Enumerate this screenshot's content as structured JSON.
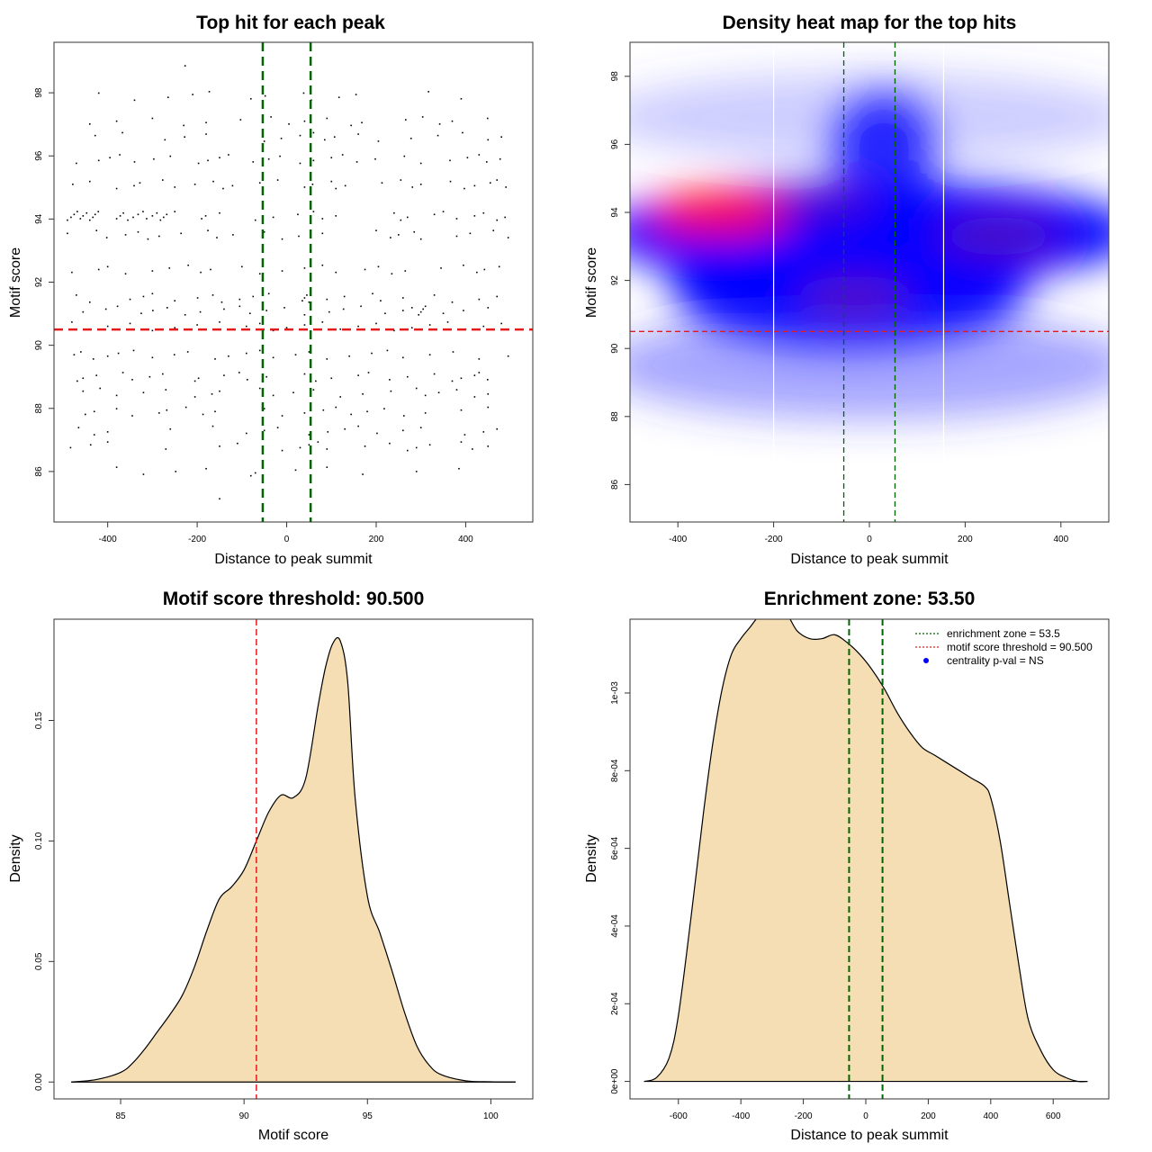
{
  "chart_data": [
    {
      "id": "scatter",
      "type": "scatter",
      "title": "Top hit for each peak",
      "xlabel": "Distance to peak summit",
      "ylabel": "Motif score",
      "xlim": [
        -520,
        550
      ],
      "ylim": [
        84.4,
        99.6
      ],
      "xticks": [
        -400,
        -200,
        0,
        200,
        400
      ],
      "yticks": [
        86,
        88,
        90,
        92,
        94,
        96,
        98
      ],
      "hline": {
        "value": 90.5,
        "color": "#e41a1c",
        "label": "motif score threshold"
      },
      "vlines": [
        {
          "value": -53.5,
          "color": "#006400"
        },
        {
          "value": 53.5,
          "color": "#006400"
        }
      ],
      "point_rows": [
        {
          "y": 94.1,
          "x": [
            -490,
            -482,
            -475,
            -468,
            -461,
            -455,
            -447,
            -440,
            -433,
            -428,
            -421,
            -380,
            -372,
            -365,
            -355,
            -343,
            -332,
            -321,
            -313,
            -300,
            -290,
            -282,
            -275,
            -268,
            -250,
            -190,
            -181,
            -150,
            -70,
            -30,
            25,
            60,
            80,
            110,
            240,
            255,
            270,
            330,
            350,
            380,
            420,
            440,
            470,
            488
          ]
        },
        {
          "y": 93.5,
          "x": [
            -490,
            -425,
            -402,
            -360,
            -332,
            -310,
            -285,
            -236,
            -176,
            -156,
            -120,
            -50,
            -10,
            27,
            80,
            200,
            232,
            250,
            285,
            300,
            380,
            410,
            462,
            495
          ]
        },
        {
          "y": 92.4,
          "x": [
            -480,
            -420,
            -400,
            -360,
            -300,
            -262,
            -220,
            -192,
            -170,
            -100,
            -60,
            -10,
            40,
            80,
            110,
            175,
            205,
            235,
            265,
            345,
            395,
            425,
            442,
            475
          ]
        },
        {
          "y": 91.5,
          "x": [
            -470,
            -440,
            -350,
            -320,
            -300,
            -250,
            -199,
            -165,
            -145,
            -105,
            -75,
            -40,
            35,
            40,
            45,
            50,
            90,
            129,
            192,
            210,
            260,
            330,
            370,
            430,
            470
          ]
        },
        {
          "y": 91.1,
          "x": [
            -455,
            -404,
            -378,
            -325,
            -299,
            -267,
            -227,
            -193,
            -140,
            -105,
            -82,
            -45,
            -5,
            40,
            95,
            127,
            166,
            220,
            260,
            280,
            295,
            300,
            305,
            310,
            350,
            395,
            450
          ]
        },
        {
          "y": 90.6,
          "x": [
            -480,
            -440,
            -400,
            -350,
            -300,
            -250,
            -200,
            -150,
            -120,
            -90,
            -60,
            -30,
            0,
            40,
            80,
            120,
            160,
            200,
            240,
            280,
            320,
            360,
            400,
            440,
            480
          ]
        },
        {
          "y": 89.7,
          "x": [
            -475,
            -460,
            -432,
            -400,
            -376,
            -342,
            -300,
            -251,
            -221,
            -160,
            -130,
            -90,
            -60,
            -30,
            20,
            50,
            90,
            140,
            190,
            225,
            260,
            320,
            372,
            430,
            495
          ]
        },
        {
          "y": 89.0,
          "x": [
            -468,
            -455,
            -425,
            -366,
            -345,
            -306,
            -277,
            -205,
            -197,
            -140,
            -106,
            -88,
            -45,
            40,
            65,
            100,
            160,
            183,
            230,
            270,
            330,
            370,
            390,
            420,
            430,
            449
          ]
        },
        {
          "y": 88.5,
          "x": [
            -455,
            -417,
            -380,
            -320,
            -270,
            -205,
            -167,
            -150,
            -60,
            -30,
            15,
            60,
            120,
            170,
            233,
            290,
            310,
            340,
            380,
            420,
            450
          ]
        },
        {
          "y": 87.9,
          "x": [
            -450,
            -430,
            -380,
            -345,
            -285,
            -268,
            -225,
            -187,
            -160,
            -50,
            -10,
            40,
            82,
            110,
            144,
            180,
            218,
            262,
            310,
            390,
            450
          ]
        },
        {
          "y": 87.3,
          "x": [
            -465,
            -430,
            -400,
            -260,
            -165,
            -90,
            -50,
            -20,
            50,
            92,
            130,
            160,
            202,
            260,
            300,
            398,
            440,
            470
          ]
        },
        {
          "y": 86.8,
          "x": [
            -483,
            -438,
            -400,
            -270,
            -150,
            -110,
            -10,
            30,
            50,
            70,
            90,
            175,
            230,
            270,
            290,
            320,
            390,
            415,
            450
          ]
        },
        {
          "y": 86.0,
          "x": [
            -380,
            -320,
            -248,
            -180,
            -80,
            -70,
            20,
            90,
            170,
            290,
            385
          ]
        },
        {
          "y": 95.1,
          "x": [
            -478,
            -440,
            -380,
            -341,
            -328,
            -277,
            -250,
            -205,
            -164,
            -142,
            -121,
            -60,
            -20,
            40,
            58,
            100,
            110,
            131,
            213,
            255,
            281,
            300,
            366,
            397,
            420,
            455,
            470,
            490
          ]
        },
        {
          "y": 95.9,
          "x": [
            -470,
            -420,
            -395,
            -373,
            -340,
            -297,
            -260,
            -197,
            -176,
            -150,
            -130,
            -75,
            -40,
            -15,
            30,
            60,
            100,
            125,
            157,
            198,
            263,
            300,
            365,
            404,
            430,
            447,
            477
          ]
        },
        {
          "y": 96.6,
          "x": [
            -428,
            -367,
            -272,
            -228,
            -180,
            -50,
            -12,
            30,
            60,
            85,
            107,
            160,
            205,
            278,
            338,
            393,
            450,
            480
          ]
        },
        {
          "y": 97.1,
          "x": [
            -440,
            -380,
            -300,
            -230,
            -180,
            -103,
            -35,
            5,
            40,
            90,
            144,
            168,
            266,
            304,
            342,
            370,
            449
          ]
        },
        {
          "y": 97.9,
          "x": [
            -420,
            -340,
            -265,
            -210,
            -173,
            -80,
            -48,
            38,
            55,
            117,
            155,
            317,
            390
          ]
        },
        {
          "y": 98.9,
          "x": [
            -227
          ]
        },
        {
          "y": 85.0,
          "x": [
            -150
          ]
        }
      ]
    },
    {
      "id": "heatmap",
      "type": "heatmap",
      "title": "Density heat map for the top hits",
      "xlabel": "Distance to peak summit",
      "ylabel": "Motif score",
      "xlim": [
        -500,
        500
      ],
      "ylim": [
        84.9,
        99.0
      ],
      "xticks": [
        -400,
        -200,
        0,
        200,
        400
      ],
      "yticks": [
        86,
        88,
        90,
        92,
        94,
        96,
        98
      ],
      "color_scale": [
        "#ffffff",
        "#0000ff",
        "#ff0000"
      ],
      "density_centers": [
        {
          "x": -310,
          "y": 94.0,
          "weight": 1.0
        },
        {
          "x": -30,
          "y": 91.5,
          "weight": 0.55
        },
        {
          "x": 270,
          "y": 93.3,
          "weight": 0.55
        },
        {
          "x": -100,
          "y": 94.3,
          "weight": 0.6
        },
        {
          "x": 60,
          "y": 93.0,
          "weight": 0.5
        }
      ],
      "hline": {
        "value": 90.5,
        "color": "#e41a1c"
      },
      "vlines": [
        {
          "value": -53.5,
          "color": "#006400"
        },
        {
          "value": 53.5,
          "color": "#006400"
        }
      ],
      "white_lines": [
        -200,
        155
      ]
    },
    {
      "id": "score-density",
      "type": "area",
      "title": "Motif score threshold: 90.500",
      "xlabel": "Motif score",
      "ylabel": "Density",
      "xlim": [
        82.3,
        101.7
      ],
      "ylim": [
        -0.007,
        0.192
      ],
      "xticks": [
        85,
        90,
        95,
        100
      ],
      "yticks": [
        0.0,
        0.05,
        0.1,
        0.15
      ],
      "ytick_labels": [
        "0.00",
        "0.05",
        "0.10",
        "0.15"
      ],
      "fill_color": "#f5deb3",
      "x": [
        83,
        84,
        85,
        85.5,
        86,
        86.5,
        87,
        87.5,
        88,
        88.5,
        89,
        89.5,
        90,
        90.5,
        91,
        91.5,
        92,
        92.5,
        93,
        93.3,
        93.6,
        93.9,
        94.2,
        94.5,
        95,
        95.5,
        96,
        96.5,
        97,
        97.5,
        98,
        99,
        100,
        101
      ],
      "y": [
        0.0,
        0.001,
        0.004,
        0.008,
        0.014,
        0.021,
        0.028,
        0.036,
        0.048,
        0.063,
        0.076,
        0.081,
        0.088,
        0.1,
        0.112,
        0.119,
        0.118,
        0.126,
        0.156,
        0.172,
        0.182,
        0.183,
        0.166,
        0.118,
        0.077,
        0.062,
        0.046,
        0.029,
        0.015,
        0.007,
        0.003,
        0.0005,
        0.0001,
        0.0
      ],
      "vline": {
        "value": 90.5,
        "color": "#e41a1c"
      }
    },
    {
      "id": "distance-density",
      "type": "area",
      "title": "Enrichment zone: 53.50",
      "xlabel": "Distance to peak summit",
      "ylabel": "Density",
      "xlim": [
        -755,
        778
      ],
      "ylim": [
        -4.5e-05,
        0.00119
      ],
      "xticks": [
        -600,
        -400,
        -200,
        0,
        200,
        400,
        600
      ],
      "yticks": [
        0,
        0.0002,
        0.0004,
        0.0006,
        0.0008,
        0.001
      ],
      "ytick_labels": [
        "0e+00",
        "2e-04",
        "4e-04",
        "6e-04",
        "8e-04",
        "1e-03"
      ],
      "fill_color": "#f5deb3",
      "x": [
        -710,
        -670,
        -630,
        -600,
        -560,
        -520,
        -490,
        -460,
        -430,
        -400,
        -370,
        -340,
        -300,
        -280,
        -250,
        -220,
        -180,
        -140,
        -100,
        -60,
        -20,
        20,
        60,
        100,
        140,
        180,
        220,
        260,
        300,
        340,
        380,
        400,
        430,
        460,
        490,
        520,
        560,
        600,
        640,
        680,
        710
      ],
      "y": [
        0.0,
        1e-05,
        6e-05,
        0.00017,
        0.00042,
        0.00069,
        0.00087,
        0.00101,
        0.0011,
        0.00114,
        0.00117,
        0.0012,
        0.00122,
        0.00122,
        0.0012,
        0.00116,
        0.00114,
        0.00114,
        0.00115,
        0.00113,
        0.0011,
        0.00106,
        0.00101,
        0.00095,
        0.0009,
        0.00086,
        0.00084,
        0.00082,
        0.0008,
        0.00078,
        0.00076,
        0.00073,
        0.00062,
        0.00046,
        0.0003,
        0.00016,
        8e-05,
        3e-05,
        1e-05,
        0.0,
        0.0
      ],
      "vlines": [
        {
          "value": -53.5,
          "color": "#006400"
        },
        {
          "value": 53.5,
          "color": "#006400"
        }
      ],
      "legend": {
        "position": "top-right",
        "entries": [
          {
            "label": "enrichment zone = 53.5",
            "color": "#006400",
            "style": "dotted"
          },
          {
            "label": "motif score threshold = 90.500",
            "color": "#e41a1c",
            "style": "dotted"
          },
          {
            "label": "centrality p-val = NS",
            "color": "#0000ff",
            "style": "point"
          }
        ]
      }
    }
  ]
}
